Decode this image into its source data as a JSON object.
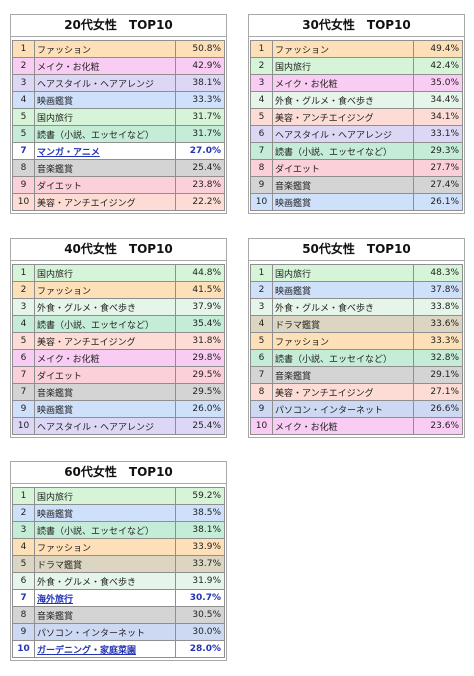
{
  "category_colors": {
    "ファッション": "#fde0b8",
    "メイク・お化粧": "#f9ccf3",
    "ヘアスタイル・ヘアアレンジ": "#ddd7f6",
    "映画鑑賞": "#cfe0fb",
    "国内旅行": "#d6f5d8",
    "読書（小説、エッセイなど）": "#c4ecd6",
    "音楽鑑賞": "#d4d4d4",
    "ダイエット": "#fbd0d8",
    "美容・アンチエイジング": "#fcdcd4",
    "外食・グルメ・食べ歩き": "#e5f5ea",
    "ドラマ鑑賞": "#dcd5c1",
    "パソコン・インターネット": "#cdd9f2",
    "マンガ・アニメ": "#ffffff",
    "海外旅行": "#ffffff",
    "ガーデニング・家庭菜園": "#ffffff"
  },
  "highlight_color": "#2434b4",
  "chart_data": [
    {
      "type": "table",
      "title": "20代女性　TOP10",
      "rows": [
        {
          "rank": "1",
          "label": "ファッション",
          "value": "50.8%"
        },
        {
          "rank": "2",
          "label": "メイク・お化粧",
          "value": "42.9%"
        },
        {
          "rank": "3",
          "label": "ヘアスタイル・ヘアアレンジ",
          "value": "38.1%"
        },
        {
          "rank": "4",
          "label": "映画鑑賞",
          "value": "33.3%"
        },
        {
          "rank": "5",
          "label": "国内旅行",
          "value": "31.7%"
        },
        {
          "rank": "5",
          "label": "読書（小説、エッセイなど）",
          "value": "31.7%"
        },
        {
          "rank": "7",
          "label": "マンガ・アニメ",
          "value": "27.0%",
          "highlight": true
        },
        {
          "rank": "8",
          "label": "音楽鑑賞",
          "value": "25.4%"
        },
        {
          "rank": "9",
          "label": "ダイエット",
          "value": "23.8%"
        },
        {
          "rank": "10",
          "label": "美容・アンチエイジング",
          "value": "22.2%"
        }
      ]
    },
    {
      "type": "table",
      "title": "30代女性　TOP10",
      "rows": [
        {
          "rank": "1",
          "label": "ファッション",
          "value": "49.4%"
        },
        {
          "rank": "2",
          "label": "国内旅行",
          "value": "42.4%"
        },
        {
          "rank": "3",
          "label": "メイク・お化粧",
          "value": "35.0%"
        },
        {
          "rank": "4",
          "label": "外食・グルメ・食べ歩き",
          "value": "34.4%"
        },
        {
          "rank": "5",
          "label": "美容・アンチエイジング",
          "value": "34.1%"
        },
        {
          "rank": "6",
          "label": "ヘアスタイル・ヘアアレンジ",
          "value": "33.1%"
        },
        {
          "rank": "7",
          "label": "読書（小説、エッセイなど）",
          "value": "29.3%"
        },
        {
          "rank": "8",
          "label": "ダイエット",
          "value": "27.7%"
        },
        {
          "rank": "9",
          "label": "音楽鑑賞",
          "value": "27.4%"
        },
        {
          "rank": "10",
          "label": "映画鑑賞",
          "value": "26.1%"
        }
      ]
    },
    {
      "type": "table",
      "title": "40代女性　TOP10",
      "rows": [
        {
          "rank": "1",
          "label": "国内旅行",
          "value": "44.8%"
        },
        {
          "rank": "2",
          "label": "ファッション",
          "value": "41.5%"
        },
        {
          "rank": "3",
          "label": "外食・グルメ・食べ歩き",
          "value": "37.9%"
        },
        {
          "rank": "4",
          "label": "読書（小説、エッセイなど）",
          "value": "35.4%"
        },
        {
          "rank": "5",
          "label": "美容・アンチエイジング",
          "value": "31.8%"
        },
        {
          "rank": "6",
          "label": "メイク・お化粧",
          "value": "29.8%"
        },
        {
          "rank": "7",
          "label": "ダイエット",
          "value": "29.5%"
        },
        {
          "rank": "7",
          "label": "音楽鑑賞",
          "value": "29.5%"
        },
        {
          "rank": "9",
          "label": "映画鑑賞",
          "value": "26.0%"
        },
        {
          "rank": "10",
          "label": "ヘアスタイル・ヘアアレンジ",
          "value": "25.4%"
        }
      ]
    },
    {
      "type": "table",
      "title": "50代女性　TOP10",
      "rows": [
        {
          "rank": "1",
          "label": "国内旅行",
          "value": "48.3%"
        },
        {
          "rank": "2",
          "label": "映画鑑賞",
          "value": "37.8%"
        },
        {
          "rank": "3",
          "label": "外食・グルメ・食べ歩き",
          "value": "33.8%"
        },
        {
          "rank": "4",
          "label": "ドラマ鑑賞",
          "value": "33.6%"
        },
        {
          "rank": "5",
          "label": "ファッション",
          "value": "33.3%"
        },
        {
          "rank": "6",
          "label": "読書（小説、エッセイなど）",
          "value": "32.8%"
        },
        {
          "rank": "7",
          "label": "音楽鑑賞",
          "value": "29.1%"
        },
        {
          "rank": "8",
          "label": "美容・アンチエイジング",
          "value": "27.1%"
        },
        {
          "rank": "9",
          "label": "パソコン・インターネット",
          "value": "26.6%"
        },
        {
          "rank": "10",
          "label": "メイク・お化粧",
          "value": "23.6%"
        }
      ]
    },
    {
      "type": "table",
      "title": "60代女性　TOP10",
      "rows": [
        {
          "rank": "1",
          "label": "国内旅行",
          "value": "59.2%"
        },
        {
          "rank": "2",
          "label": "映画鑑賞",
          "value": "38.5%"
        },
        {
          "rank": "3",
          "label": "読書（小説、エッセイなど）",
          "value": "38.1%"
        },
        {
          "rank": "4",
          "label": "ファッション",
          "value": "33.9%"
        },
        {
          "rank": "5",
          "label": "ドラマ鑑賞",
          "value": "33.7%"
        },
        {
          "rank": "6",
          "label": "外食・グルメ・食べ歩き",
          "value": "31.9%"
        },
        {
          "rank": "7",
          "label": "海外旅行",
          "value": "30.7%",
          "highlight": true
        },
        {
          "rank": "8",
          "label": "音楽鑑賞",
          "value": "30.5%"
        },
        {
          "rank": "9",
          "label": "パソコン・インターネット",
          "value": "30.0%"
        },
        {
          "rank": "10",
          "label": "ガーデニング・家庭菜園",
          "value": "28.0%",
          "highlight": true
        }
      ]
    }
  ]
}
